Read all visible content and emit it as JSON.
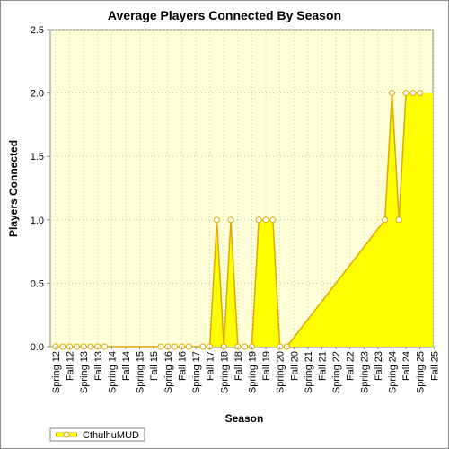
{
  "chart_data": {
    "type": "area",
    "title": "Average Players Connected By Season",
    "xlabel": "Season",
    "ylabel": "Players Connected",
    "ylim": [
      0,
      2.5
    ],
    "yticks": [
      "0.0",
      "0.5",
      "1.0",
      "1.5",
      "2.0",
      "2.5"
    ],
    "categories": [
      "Spring 12",
      "Fall 12",
      "Spring 13",
      "Fall 13",
      "Spring 14",
      "Fall 14",
      "Spring 15",
      "Fall 15",
      "Spring 16",
      "Fall 16",
      "Spring 17",
      "Fall 17",
      "Spring 18",
      "Fall 18",
      "Spring 19",
      "Fall 19",
      "Spring 20",
      "Fall 20",
      "Spring 21",
      "Fall 21",
      "Spring 22",
      "Fall 22",
      "Spring 23",
      "Fall 23",
      "Spring 24",
      "Fall 24",
      "Spring 25",
      "Fall 25"
    ],
    "points": [
      {
        "x": 0,
        "y": 0
      },
      {
        "x": 0.5,
        "y": 0
      },
      {
        "x": 1,
        "y": 0
      },
      {
        "x": 1.5,
        "y": 0
      },
      {
        "x": 2,
        "y": 0
      },
      {
        "x": 2.5,
        "y": 0
      },
      {
        "x": 3,
        "y": 0
      },
      {
        "x": 3.5,
        "y": 0
      },
      {
        "x": 7.5,
        "y": 0
      },
      {
        "x": 8,
        "y": 0
      },
      {
        "x": 8.5,
        "y": 0
      },
      {
        "x": 9,
        "y": 0
      },
      {
        "x": 9.5,
        "y": 0
      },
      {
        "x": 10.5,
        "y": 0
      },
      {
        "x": 11,
        "y": 0
      },
      {
        "x": 11.5,
        "y": 1
      },
      {
        "x": 12,
        "y": 0
      },
      {
        "x": 12.5,
        "y": 1
      },
      {
        "x": 13,
        "y": 0
      },
      {
        "x": 13.5,
        "y": 0
      },
      {
        "x": 14,
        "y": 0
      },
      {
        "x": 14.5,
        "y": 1
      },
      {
        "x": 15,
        "y": 1
      },
      {
        "x": 15.5,
        "y": 1
      },
      {
        "x": 16,
        "y": 0
      },
      {
        "x": 16.5,
        "y": 0
      },
      {
        "x": 23.5,
        "y": 1
      },
      {
        "x": 24,
        "y": 2
      },
      {
        "x": 24.5,
        "y": 1
      },
      {
        "x": 25,
        "y": 2
      },
      {
        "x": 25.5,
        "y": 2
      },
      {
        "x": 26,
        "y": 2
      }
    ],
    "series": [
      {
        "name": "CthulhuMUD",
        "color": "#ffff00",
        "line_color": "#e0a800"
      }
    ],
    "grid": true,
    "legend": "bottom-left"
  }
}
